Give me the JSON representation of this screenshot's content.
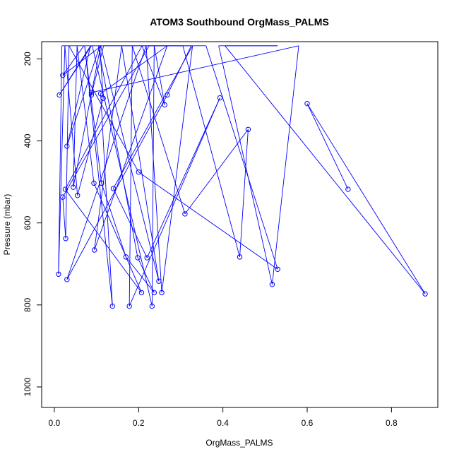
{
  "chart_data": {
    "type": "line",
    "title": "ATOM3 Southbound OrgMass_PALMS",
    "xlabel": "OrgMass_PALMS",
    "ylabel": "Pressure (mbar)",
    "xlim": [
      -0.03,
      0.91
    ],
    "ylim": [
      1050,
      158
    ],
    "y_reversed": true,
    "x_ticks": [
      {
        "value": 0.0,
        "label": "0.0"
      },
      {
        "value": 0.2,
        "label": "0.2"
      },
      {
        "value": 0.4,
        "label": "0.4"
      },
      {
        "value": 0.6,
        "label": "0.6"
      },
      {
        "value": 0.8,
        "label": "0.8"
      }
    ],
    "y_ticks": [
      {
        "value": 200,
        "label": "200"
      },
      {
        "value": 400,
        "label": "400"
      },
      {
        "value": 600,
        "label": "600"
      },
      {
        "value": 800,
        "label": "800"
      },
      {
        "value": 1000,
        "label": "1000"
      }
    ],
    "grid": false,
    "legend": "none",
    "series_color": "#0000ff",
    "marker": "open-circle",
    "series": [
      {
        "x": [
          0.07,
          0.02,
          0.112,
          0.088,
          0.012,
          0.086,
          0.03,
          0.108,
          0.116,
          0.055,
          0.025,
          0.01,
          0.018,
          0.09,
          0.232,
          0.237,
          0.262,
          0.208,
          0.026,
          0.207,
          0.094,
          0.054,
          0.045,
          0.11,
          0.248,
          0.16,
          0.095,
          0.268,
          0.11,
          0.138,
          0.072,
          0.112,
          0.17,
          0.237,
          0.198,
          0.104,
          0.325,
          0.268,
          0.03,
          0.218,
          0.255,
          0.328,
          0.14,
          0.22,
          0.393,
          0.178,
          0.185,
          0.31,
          0.46,
          0.44,
          0.305,
          0.225,
          0.02,
          0.027,
          0.035,
          0.2,
          0.53,
          0.36,
          0.117,
          0.088,
          0.088,
          0.58,
          0.517,
          0.39,
          0.53,
          0.405,
          0.88,
          0.6,
          0.697
        ],
        "y": [
          168,
          240,
          168,
          168,
          288,
          168,
          413,
          168,
          296,
          533,
          168,
          725,
          168,
          168,
          803,
          168,
          312,
          168,
          518,
          770,
          503,
          168,
          513,
          168,
          742,
          168,
          666,
          168,
          285,
          803,
          168,
          503,
          683,
          770,
          685,
          168,
          168,
          288,
          738,
          168,
          770,
          168,
          516,
          685,
          295,
          803,
          168,
          578,
          372,
          683,
          168,
          168,
          537,
          638,
          168,
          476,
          713,
          168,
          168,
          288,
          282,
          168,
          750,
          168,
          168,
          168,
          773,
          309,
          518
        ]
      }
    ]
  }
}
